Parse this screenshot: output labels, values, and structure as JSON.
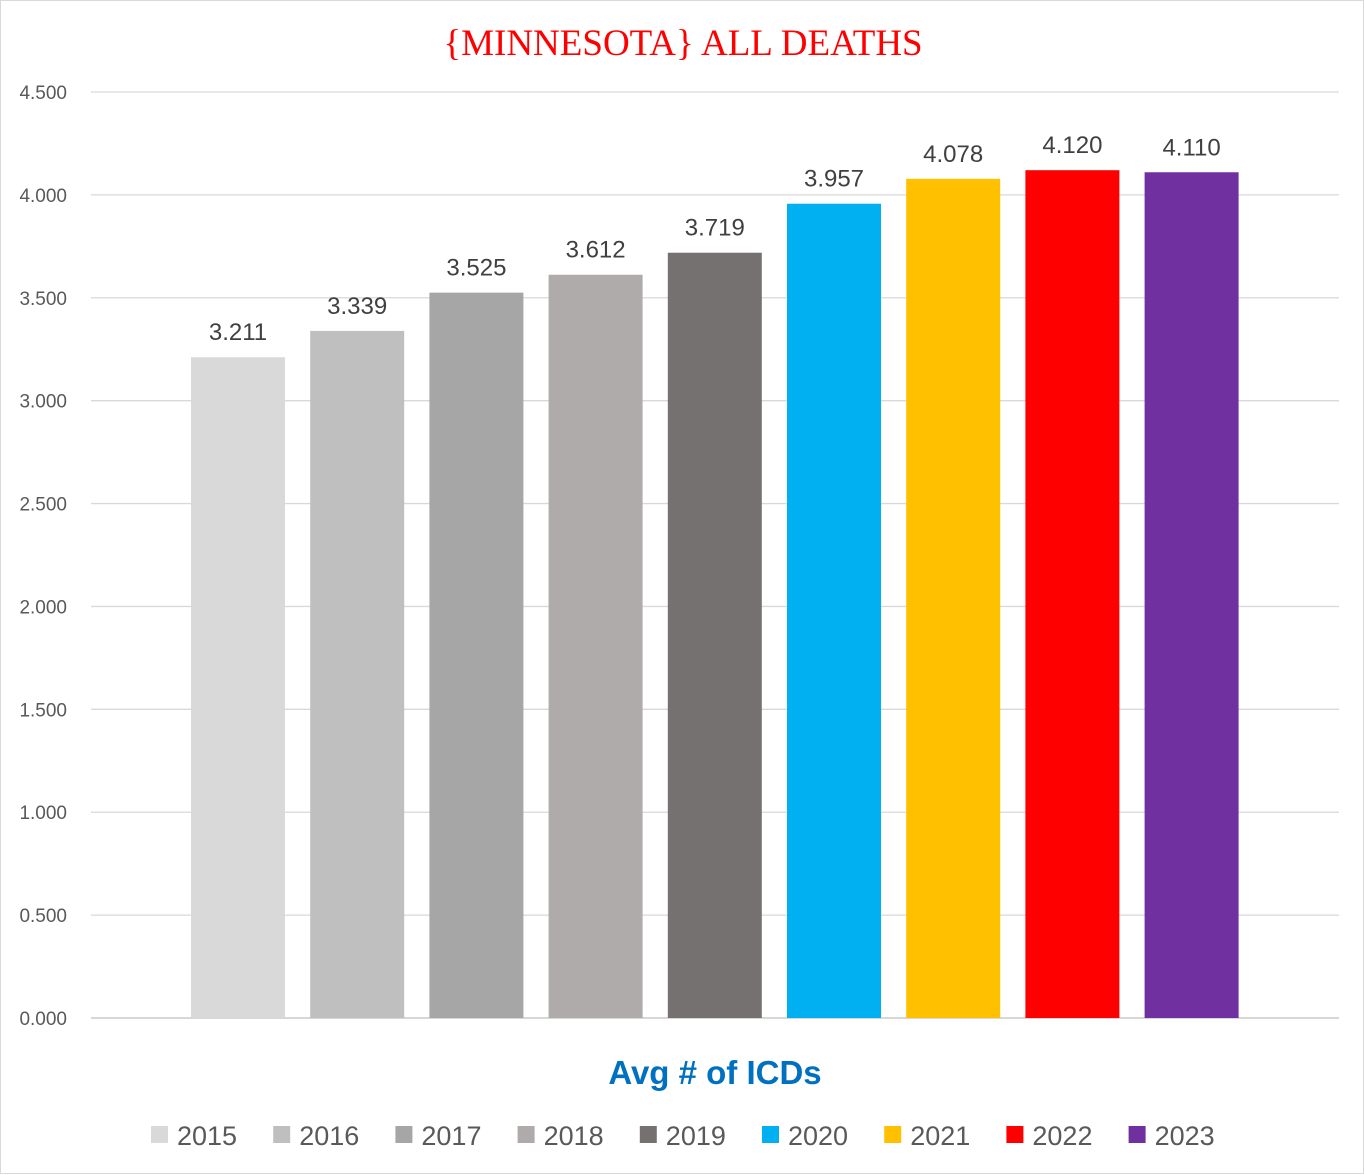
{
  "chart_data": {
    "type": "bar",
    "title": "{MINNESOTA}   ALL DEATHS",
    "xlabel": "Avg # of ICDs",
    "ylabel": "",
    "ylim": [
      0,
      4.5
    ],
    "yticks": [
      "0.000",
      "0.500",
      "1.000",
      "1.500",
      "2.000",
      "2.500",
      "3.000",
      "3.500",
      "4.000",
      "4.500"
    ],
    "ytick_values": [
      0,
      0.5,
      1.0,
      1.5,
      2.0,
      2.5,
      3.0,
      3.5,
      4.0,
      4.5
    ],
    "grid": true,
    "legend_position": "bottom",
    "series": [
      {
        "name": "2015",
        "value": 3.211,
        "label": "3.211",
        "color": "#d9d9d9"
      },
      {
        "name": "2016",
        "value": 3.339,
        "label": "3.339",
        "color": "#bfbfbf"
      },
      {
        "name": "2017",
        "value": 3.525,
        "label": "3.525",
        "color": "#a6a6a6"
      },
      {
        "name": "2018",
        "value": 3.612,
        "label": "3.612",
        "color": "#afabab"
      },
      {
        "name": "2019",
        "value": 3.719,
        "label": "3.719",
        "color": "#767171"
      },
      {
        "name": "2020",
        "value": 3.957,
        "label": "3.957",
        "color": "#00b0f0"
      },
      {
        "name": "2021",
        "value": 4.078,
        "label": "4.078",
        "color": "#ffc000"
      },
      {
        "name": "2022",
        "value": 4.12,
        "label": "4.120",
        "color": "#ff0000"
      },
      {
        "name": "2023",
        "value": 4.11,
        "label": "4.110",
        "color": "#7030a0"
      }
    ]
  }
}
